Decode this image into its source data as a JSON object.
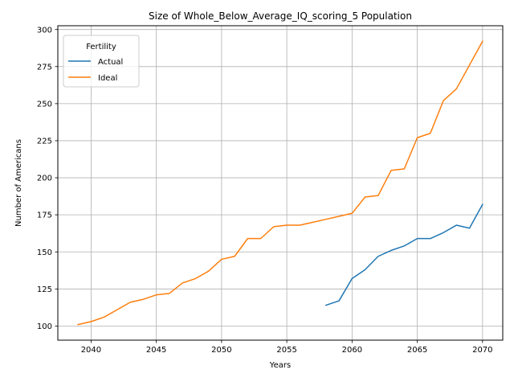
{
  "chart_data": {
    "type": "line",
    "title": "Size of Whole_Below_Average_IQ_scoring_5 Population",
    "xlabel": "Years",
    "ylabel": "Number of Americans",
    "xlim": [
      2037.45,
      2071.55
    ],
    "ylim": [
      90.45,
      302.55
    ],
    "xticks": [
      2040,
      2045,
      2050,
      2055,
      2060,
      2065,
      2070
    ],
    "yticks": [
      100,
      125,
      150,
      175,
      200,
      225,
      250,
      275,
      300
    ],
    "grid": true,
    "legend": {
      "title": "Fertility",
      "placement": "top-left"
    },
    "series": [
      {
        "name": "Actual",
        "color": "#1f77b4",
        "x": [
          2058,
          2059,
          2060,
          2061,
          2062,
          2063,
          2064,
          2065,
          2066,
          2067,
          2068,
          2069,
          2070
        ],
        "values": [
          114,
          117,
          132,
          138,
          147,
          151,
          154,
          159,
          159,
          163,
          168,
          166,
          182
        ]
      },
      {
        "name": "Ideal",
        "color": "#ff7f0e",
        "x": [
          2039,
          2040,
          2041,
          2042,
          2043,
          2044,
          2045,
          2046,
          2047,
          2048,
          2049,
          2050,
          2051,
          2052,
          2053,
          2054,
          2055,
          2056,
          2057,
          2058,
          2059,
          2060,
          2061,
          2062,
          2063,
          2064,
          2065,
          2066,
          2067,
          2068,
          2069,
          2070
        ],
        "values": [
          101,
          103,
          106,
          111,
          116,
          118,
          121,
          122,
          129,
          132,
          137,
          145,
          147,
          159,
          159,
          167,
          168,
          168,
          170,
          172,
          174,
          176,
          187,
          188,
          205,
          206,
          227,
          230,
          252,
          260,
          276,
          292
        ]
      }
    ]
  }
}
